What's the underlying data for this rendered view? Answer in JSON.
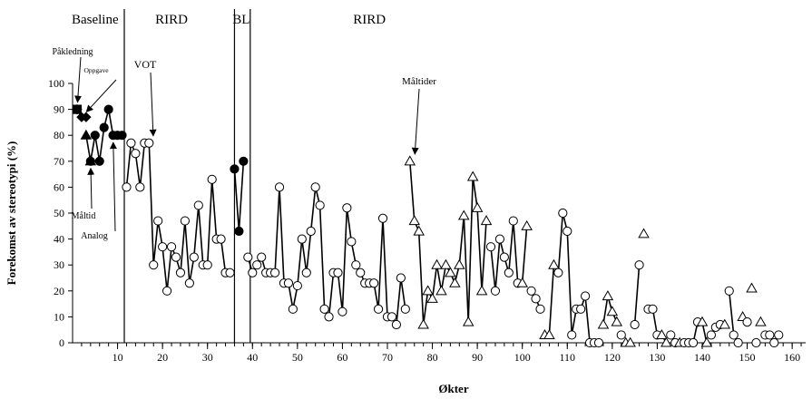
{
  "chart_data": {
    "type": "line",
    "title": "",
    "xlabel": "Økter",
    "ylabel": "Forekomst av stereotypi (%)",
    "xlim": [
      0,
      163
    ],
    "ylim": [
      0,
      100
    ],
    "xticks": [
      "10",
      "20",
      "30",
      "40",
      "50",
      "60",
      "70",
      "80",
      "90",
      "100",
      "110",
      "120",
      "130",
      "140",
      "150",
      "160"
    ],
    "yticks": [
      "0",
      "10",
      "20",
      "30",
      "40",
      "50",
      "60",
      "70",
      "80",
      "90",
      "100"
    ],
    "phase_labels": [
      {
        "text": "Baseline",
        "x": 5
      },
      {
        "text": "RIRD",
        "x": 22
      },
      {
        "text": "BL",
        "x": 37.5
      },
      {
        "text": "RIRD",
        "x": 66
      }
    ],
    "phase_lines_x": [
      11.5,
      36,
      39.5
    ],
    "annotations": [
      {
        "text": "Påkledning",
        "target": [
          1,
          90
        ]
      },
      {
        "text": "Oppgave",
        "target": [
          2,
          87
        ]
      },
      {
        "text": "Måltid",
        "target": [
          4,
          70
        ]
      },
      {
        "text": "Analog",
        "target": [
          9,
          80
        ]
      },
      {
        "text": "VOT",
        "target": [
          18,
          77
        ]
      },
      {
        "text": "Måltider",
        "target": [
          76,
          70
        ]
      }
    ],
    "series": [
      {
        "marker": "filled-square",
        "values": [
          [
            1,
            90
          ]
        ]
      },
      {
        "marker": "filled-diamond",
        "values": [
          [
            1,
            90
          ],
          [
            2,
            87
          ],
          [
            3,
            87
          ]
        ]
      },
      {
        "marker": "filled-triangle",
        "values": [
          [
            3,
            80
          ],
          [
            4,
            70
          ]
        ]
      },
      {
        "marker": "filled-circle",
        "values": [
          [
            4,
            70
          ],
          [
            5,
            80
          ],
          [
            6,
            70
          ],
          [
            7,
            83
          ],
          [
            8,
            90
          ],
          [
            9,
            80
          ],
          [
            10,
            80
          ],
          [
            11,
            80
          ]
        ]
      },
      {
        "marker": "open-circle",
        "values": [
          [
            12,
            60
          ],
          [
            13,
            77
          ],
          [
            14,
            73
          ],
          [
            15,
            60
          ],
          [
            16,
            77
          ],
          [
            17,
            77
          ],
          [
            18,
            30
          ],
          [
            19,
            47
          ],
          [
            20,
            37
          ],
          [
            21,
            20
          ],
          [
            22,
            37
          ],
          [
            23,
            33
          ],
          [
            24,
            27
          ],
          [
            25,
            47
          ],
          [
            26,
            23
          ],
          [
            27,
            33
          ],
          [
            28,
            53
          ],
          [
            29,
            30
          ],
          [
            30,
            30
          ],
          [
            31,
            63
          ],
          [
            32,
            40
          ],
          [
            33,
            40
          ],
          [
            34,
            27
          ],
          [
            35,
            27
          ]
        ]
      },
      {
        "marker": "filled-circle",
        "values": [
          [
            36,
            67
          ],
          [
            37,
            43
          ],
          [
            38,
            70
          ]
        ]
      },
      {
        "marker": "open-circle",
        "values": [
          [
            39,
            33
          ],
          [
            40,
            27
          ],
          [
            41,
            30
          ],
          [
            42,
            33
          ],
          [
            43,
            27
          ],
          [
            44,
            27
          ],
          [
            45,
            27
          ],
          [
            46,
            60
          ],
          [
            47,
            23
          ],
          [
            48,
            23
          ],
          [
            49,
            13
          ],
          [
            50,
            22
          ],
          [
            51,
            40
          ],
          [
            52,
            27
          ],
          [
            53,
            43
          ],
          [
            54,
            60
          ],
          [
            55,
            53
          ],
          [
            56,
            13
          ],
          [
            57,
            10
          ],
          [
            58,
            27
          ],
          [
            59,
            27
          ],
          [
            60,
            12
          ],
          [
            61,
            52
          ],
          [
            62,
            39
          ],
          [
            63,
            30
          ],
          [
            64,
            27
          ],
          [
            65,
            23
          ],
          [
            66,
            23
          ],
          [
            67,
            23
          ],
          [
            68,
            13
          ],
          [
            69,
            48
          ],
          [
            70,
            10
          ],
          [
            71,
            10
          ],
          [
            72,
            7
          ],
          [
            73,
            25
          ],
          [
            74,
            13
          ]
        ]
      },
      {
        "marker": "open-triangle",
        "values": [
          [
            75,
            70
          ],
          [
            76,
            47
          ],
          [
            77,
            43
          ],
          [
            78,
            7
          ],
          [
            79,
            20
          ],
          [
            80,
            17
          ],
          [
            81,
            30
          ],
          [
            82,
            20
          ],
          [
            83,
            30
          ],
          [
            84,
            27
          ],
          [
            85,
            23
          ],
          [
            86,
            30
          ],
          [
            87,
            49
          ],
          [
            88,
            8
          ],
          [
            89,
            64
          ],
          [
            90,
            52
          ],
          [
            91,
            20
          ],
          [
            92,
            47
          ]
        ]
      },
      {
        "marker": "open-circle",
        "values": [
          [
            93,
            37
          ],
          [
            94,
            20
          ],
          [
            95,
            40
          ],
          [
            96,
            33
          ],
          [
            97,
            27
          ],
          [
            98,
            47
          ],
          [
            99,
            23
          ]
        ]
      },
      {
        "marker": "open-triangle",
        "values": [
          [
            100,
            23
          ],
          [
            101,
            45
          ]
        ]
      },
      {
        "marker": "open-circle",
        "values": [
          [
            102,
            20
          ],
          [
            103,
            17
          ],
          [
            104,
            13
          ]
        ]
      },
      {
        "marker": "open-triangle",
        "values": [
          [
            105,
            3
          ],
          [
            106,
            3
          ],
          [
            107,
            30
          ]
        ]
      },
      {
        "marker": "open-circle",
        "values": [
          [
            108,
            27
          ],
          [
            109,
            50
          ],
          [
            110,
            43
          ],
          [
            111,
            3
          ],
          [
            112,
            13
          ],
          [
            113,
            13
          ],
          [
            114,
            18
          ],
          [
            115,
            0
          ],
          [
            116,
            0
          ],
          [
            117,
            0
          ]
        ]
      },
      {
        "marker": "open-triangle",
        "values": [
          [
            118,
            7
          ],
          [
            119,
            18
          ],
          [
            120,
            12
          ],
          [
            121,
            8
          ]
        ]
      },
      {
        "marker": "open-circle",
        "values": [
          [
            122,
            3
          ]
        ]
      },
      {
        "marker": "open-triangle",
        "values": [
          [
            123,
            0
          ],
          [
            124,
            0
          ]
        ]
      },
      {
        "marker": "open-circle",
        "values": [
          [
            125,
            7
          ],
          [
            126,
            30
          ]
        ]
      },
      {
        "marker": "open-triangle",
        "values": [
          [
            127,
            42
          ]
        ]
      },
      {
        "marker": "open-circle",
        "values": [
          [
            128,
            13
          ],
          [
            129,
            13
          ],
          [
            130,
            3
          ]
        ]
      },
      {
        "marker": "open-triangle",
        "values": [
          [
            131,
            3
          ],
          [
            132,
            0
          ]
        ]
      },
      {
        "marker": "open-circle",
        "values": [
          [
            133,
            3
          ],
          [
            134,
            0
          ]
        ]
      },
      {
        "marker": "open-triangle",
        "values": [
          [
            135,
            0
          ]
        ]
      },
      {
        "marker": "open-circle",
        "values": [
          [
            136,
            0
          ],
          [
            137,
            0
          ],
          [
            138,
            0
          ],
          [
            139,
            8
          ]
        ]
      },
      {
        "marker": "open-triangle",
        "values": [
          [
            140,
            8
          ],
          [
            141,
            0
          ]
        ]
      },
      {
        "marker": "open-circle",
        "values": [
          [
            142,
            3
          ],
          [
            143,
            6
          ],
          [
            144,
            7
          ]
        ]
      },
      {
        "marker": "open-triangle",
        "values": [
          [
            145,
            7
          ]
        ]
      },
      {
        "marker": "open-circle",
        "values": [
          [
            146,
            20
          ],
          [
            147,
            3
          ],
          [
            148,
            0
          ]
        ]
      },
      {
        "marker": "open-triangle",
        "values": [
          [
            149,
            10
          ]
        ]
      },
      {
        "marker": "open-circle",
        "values": [
          [
            150,
            8
          ]
        ]
      },
      {
        "marker": "open-triangle",
        "values": [
          [
            151,
            21
          ]
        ]
      },
      {
        "marker": "open-circle",
        "values": [
          [
            152,
            0
          ]
        ]
      },
      {
        "marker": "open-triangle",
        "values": [
          [
            153,
            8
          ]
        ]
      },
      {
        "marker": "open-circle",
        "values": [
          [
            154,
            3
          ],
          [
            155,
            3
          ],
          [
            156,
            0
          ],
          [
            157,
            3
          ]
        ]
      }
    ]
  }
}
